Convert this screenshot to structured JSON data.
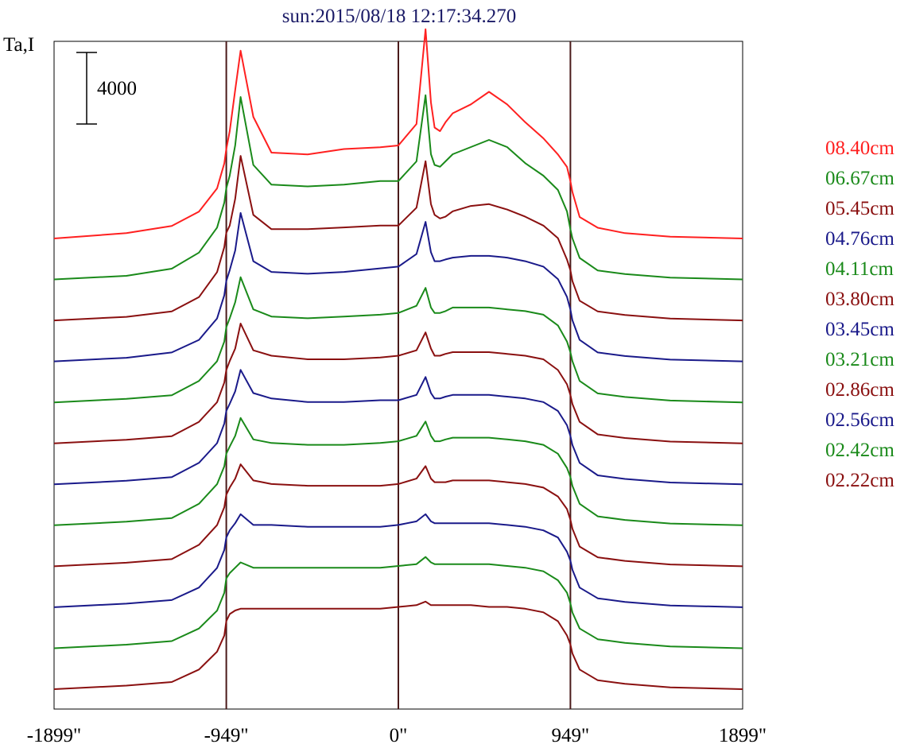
{
  "chart_data": {
    "type": "line",
    "title": "sun:2015/08/18 12:17:34.270",
    "title_color": "#1a1a66",
    "ylabel": "Ta,I",
    "scale_bar_label": "4000",
    "scale_bar_value": 4000,
    "x_ticks": [
      {
        "value": -1899,
        "label": "-1899\""
      },
      {
        "value": -949,
        "label": "-949\""
      },
      {
        "value": 0,
        "label": "0\""
      },
      {
        "value": 949,
        "label": "949\""
      },
      {
        "value": 1899,
        "label": "1899\""
      }
    ],
    "xlim": [
      -1899,
      1899
    ],
    "vertical_lines": [
      -949,
      0,
      949
    ],
    "vertical_line_color": "#4a1a1a",
    "grid": false,
    "legend_position": "right",
    "colors": {
      "red": "#ff2020",
      "green": "#1a8a1a",
      "maroon": "#8a1010",
      "navy": "#1a1a8a"
    },
    "x": [
      -1899,
      -1500,
      -1250,
      -1100,
      -1000,
      -960,
      -949,
      -930,
      -900,
      -870,
      -800,
      -700,
      -500,
      -300,
      -100,
      0,
      100,
      150,
      180,
      200,
      230,
      260,
      300,
      400,
      500,
      600,
      700,
      800,
      880,
      930,
      949,
      960,
      1000,
      1100,
      1250,
      1500,
      1899
    ],
    "series": [
      {
        "name": "08.40cm",
        "color": "#ff2020",
        "baseline": 0,
        "values": [
          0,
          300,
          700,
          1500,
          2800,
          4200,
          5000,
          6000,
          8300,
          10500,
          6800,
          4800,
          4700,
          5000,
          5100,
          5200,
          6400,
          11700,
          7600,
          6200,
          6000,
          6500,
          7000,
          7500,
          8200,
          7500,
          6500,
          5600,
          4700,
          4000,
          3200,
          2600,
          1200,
          600,
          300,
          100,
          0
        ]
      },
      {
        "name": "06.67cm",
        "color": "#1a8a1a",
        "baseline": 0,
        "values": [
          0,
          200,
          600,
          1500,
          2900,
          4300,
          5100,
          5800,
          7500,
          10200,
          6400,
          5300,
          5200,
          5300,
          5500,
          5500,
          6600,
          10300,
          7000,
          6400,
          6300,
          6600,
          7000,
          7400,
          7800,
          7400,
          6500,
          5800,
          5000,
          3800,
          2800,
          2300,
          1200,
          500,
          300,
          100,
          0
        ]
      },
      {
        "name": "05.45cm",
        "color": "#8a1010",
        "baseline": 0,
        "values": [
          0,
          200,
          500,
          1300,
          2700,
          4100,
          4900,
          5300,
          6800,
          9200,
          5900,
          5100,
          5100,
          5200,
          5300,
          5300,
          6300,
          8900,
          6500,
          5900,
          5700,
          5800,
          6100,
          6400,
          6500,
          6200,
          5800,
          5300,
          4600,
          3400,
          2800,
          2200,
          1100,
          500,
          300,
          100,
          0
        ]
      },
      {
        "name": "04.76cm",
        "color": "#1a1a8a",
        "baseline": 0,
        "values": [
          0,
          200,
          500,
          1200,
          2400,
          3700,
          4500,
          5100,
          6200,
          8300,
          5600,
          5000,
          4900,
          5000,
          5200,
          5300,
          6000,
          7800,
          6100,
          5600,
          5600,
          5700,
          5800,
          5900,
          5900,
          5800,
          5600,
          5300,
          4600,
          3600,
          2900,
          2300,
          1200,
          500,
          300,
          100,
          0
        ]
      },
      {
        "name": "04.11cm",
        "color": "#1a8a1a",
        "baseline": 0,
        "values": [
          0,
          200,
          400,
          1200,
          2300,
          3400,
          4200,
          4700,
          5600,
          7000,
          5200,
          4800,
          4700,
          4800,
          4900,
          5000,
          5400,
          6400,
          5300,
          5000,
          5000,
          5100,
          5300,
          5300,
          5300,
          5200,
          5100,
          4900,
          4300,
          3400,
          2800,
          2300,
          1200,
          500,
          300,
          100,
          0
        ]
      },
      {
        "name": "03.80cm",
        "color": "#8a1010",
        "baseline": 0,
        "values": [
          0,
          200,
          400,
          1200,
          2300,
          3400,
          4100,
          4600,
          5300,
          6700,
          5200,
          4900,
          4700,
          4700,
          4800,
          4900,
          5200,
          6200,
          5300,
          4900,
          4900,
          5000,
          5100,
          5100,
          5100,
          5000,
          4900,
          4700,
          4100,
          3300,
          2700,
          2200,
          1200,
          500,
          300,
          100,
          0
        ]
      },
      {
        "name": "03.45cm",
        "color": "#1a1a8a",
        "baseline": 0,
        "values": [
          0,
          200,
          400,
          1200,
          2300,
          3400,
          4100,
          4500,
          5200,
          6400,
          5100,
          4800,
          4600,
          4600,
          4700,
          4700,
          5000,
          6000,
          5100,
          4800,
          4800,
          4900,
          5000,
          5000,
          5000,
          4900,
          4800,
          4600,
          4100,
          3300,
          2700,
          2200,
          1200,
          500,
          300,
          100,
          0
        ]
      },
      {
        "name": "03.21cm",
        "color": "#1a8a1a",
        "baseline": 0,
        "values": [
          0,
          200,
          400,
          1200,
          2300,
          3300,
          4000,
          4400,
          5000,
          6000,
          4800,
          4600,
          4500,
          4500,
          4600,
          4700,
          5000,
          5800,
          5000,
          4700,
          4700,
          4800,
          4900,
          4900,
          4900,
          4800,
          4700,
          4500,
          4000,
          3200,
          2700,
          2200,
          1200,
          500,
          300,
          100,
          0
        ]
      },
      {
        "name": "02.86cm",
        "color": "#8a1010",
        "baseline": 0,
        "values": [
          0,
          200,
          400,
          1200,
          2300,
          3300,
          4000,
          4400,
          4900,
          5700,
          4800,
          4600,
          4500,
          4500,
          4500,
          4600,
          4900,
          5600,
          4900,
          4700,
          4700,
          4700,
          4800,
          4800,
          4800,
          4700,
          4600,
          4400,
          3900,
          3200,
          2600,
          2100,
          1100,
          500,
          300,
          100,
          0
        ]
      },
      {
        "name": "02.56cm",
        "color": "#1a1a8a",
        "baseline": 0,
        "values": [
          0,
          200,
          400,
          1100,
          2200,
          3200,
          3900,
          4300,
          4700,
          5200,
          4600,
          4600,
          4500,
          4500,
          4500,
          4600,
          4800,
          5200,
          4800,
          4700,
          4700,
          4700,
          4700,
          4700,
          4700,
          4600,
          4500,
          4300,
          3900,
          3100,
          2600,
          2100,
          1100,
          500,
          300,
          100,
          0
        ]
      },
      {
        "name": "02.42cm",
        "color": "#1a8a1a",
        "baseline": 0,
        "values": [
          0,
          200,
          400,
          1100,
          2100,
          3100,
          3900,
          4200,
          4500,
          4800,
          4500,
          4500,
          4500,
          4500,
          4500,
          4600,
          4700,
          5100,
          4800,
          4700,
          4700,
          4700,
          4700,
          4700,
          4700,
          4600,
          4500,
          4300,
          3800,
          3100,
          2500,
          2000,
          1100,
          500,
          300,
          100,
          0
        ]
      },
      {
        "name": "02.22cm",
        "color": "#8a1010",
        "baseline": 0,
        "values": [
          0,
          200,
          400,
          1100,
          2100,
          3000,
          3800,
          4200,
          4400,
          4500,
          4500,
          4500,
          4500,
          4500,
          4500,
          4600,
          4700,
          4900,
          4700,
          4700,
          4700,
          4700,
          4700,
          4700,
          4600,
          4600,
          4500,
          4300,
          3800,
          3000,
          2500,
          2000,
          1100,
          500,
          300,
          100,
          0
        ]
      }
    ]
  }
}
